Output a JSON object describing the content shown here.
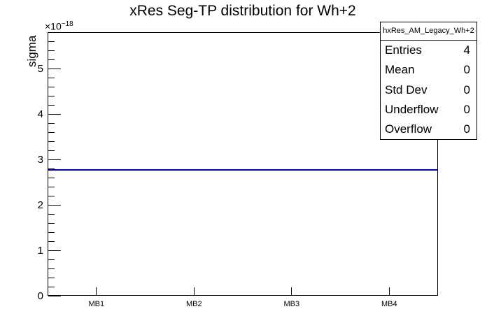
{
  "chart_data": {
    "type": "line",
    "title": "xRes Seg-TP distribution for Wh+2",
    "ylabel": "sigma",
    "y_scale_base": "×10",
    "y_scale_exp": "−18",
    "y_unit": 1e-18,
    "ylim": [
      0,
      5.8
    ],
    "y_major_ticks": [
      0,
      1,
      2,
      3,
      4,
      5
    ],
    "y_minor_step": 0.2,
    "categories": [
      "MB1",
      "MB2",
      "MB3",
      "MB4"
    ],
    "series": [
      {
        "name": "hxRes_AM_Legacy_Wh+2",
        "color": "#000099",
        "values": [
          2.77e-18,
          2.77e-18,
          2.77e-18,
          2.77e-18
        ]
      }
    ],
    "grid": false,
    "legend_position": "none"
  },
  "stats_box": {
    "header": "hxRes_AM_Legacy_Wh+2",
    "rows": [
      {
        "label": "Entries",
        "value": "4"
      },
      {
        "label": "Mean",
        "value": "0"
      },
      {
        "label": "Std Dev",
        "value": "0"
      },
      {
        "label": "Underflow",
        "value": "0"
      },
      {
        "label": "Overflow",
        "value": "0"
      }
    ]
  }
}
